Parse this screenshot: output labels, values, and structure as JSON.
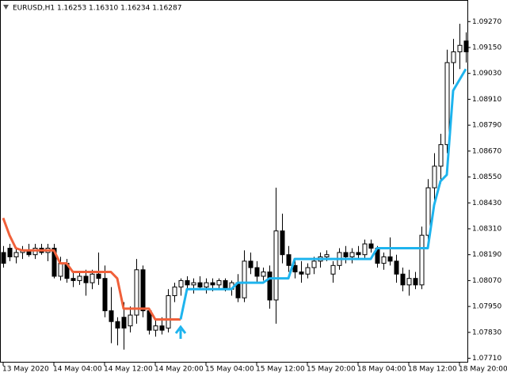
{
  "chart_data": {
    "type": "candlestick",
    "title": "EURUSD,H1  1.16253 1.16310 1.16234 1.16287",
    "categories": [
      "13 May 2020",
      null,
      null,
      null,
      null,
      null,
      null,
      null,
      "14 May 04:00",
      null,
      null,
      null,
      null,
      null,
      null,
      null,
      "14 May 12:00",
      null,
      null,
      null,
      null,
      null,
      null,
      null,
      "14 May 20:00",
      null,
      null,
      null,
      null,
      null,
      null,
      null,
      "15 May 04:00",
      null,
      null,
      null,
      null,
      null,
      null,
      null,
      "15 May 12:00",
      null,
      null,
      null,
      null,
      null,
      null,
      null,
      "15 May 20:00",
      null,
      null,
      null,
      null,
      null,
      null,
      null,
      "18 May 04:00",
      null,
      null,
      null,
      null,
      null,
      null,
      null,
      "18 May 12:00",
      null,
      null,
      null,
      null,
      null,
      null,
      null,
      "18 May 20:00",
      null
    ],
    "open": [
      1.082,
      1.0822,
      1.0818,
      1.082,
      1.0821,
      1.0819,
      1.0822,
      1.082,
      1.0822,
      1.0809,
      1.0815,
      1.0808,
      1.0807,
      1.0809,
      1.0806,
      1.081,
      1.0808,
      1.0793,
      1.0788,
      1.079,
      1.0786,
      1.0791,
      1.0812,
      1.0793,
      1.0784,
      1.0786,
      1.0785,
      1.08,
      1.0804,
      1.0807,
      1.0805,
      1.0806,
      1.0804,
      1.0806,
      1.0805,
      1.0807,
      1.0803,
      1.0806,
      1.0799,
      1.0816,
      1.0813,
      1.0809,
      1.0811,
      1.0798,
      1.083,
      1.0819,
      1.0814,
      1.0811,
      1.081,
      1.0813,
      1.0816,
      1.0818,
      1.081,
      1.0814,
      1.082,
      1.0818,
      1.082,
      1.0819,
      1.0824,
      1.0822,
      1.0815,
      1.0818,
      1.0816,
      1.081,
      1.0805,
      1.0808,
      1.0805,
      1.0828,
      1.085,
      1.086,
      1.087,
      1.0908,
      1.0913,
      1.0918
    ],
    "high": [
      1.0823,
      1.0824,
      1.0822,
      1.0823,
      1.0824,
      1.0824,
      1.0824,
      1.0824,
      1.0824,
      1.0818,
      1.0817,
      1.0811,
      1.0811,
      1.0812,
      1.0812,
      1.082,
      1.0814,
      1.0804,
      1.079,
      1.0797,
      1.0795,
      1.0817,
      1.0814,
      1.0794,
      1.0789,
      1.079,
      1.0803,
      1.0806,
      1.0808,
      1.0809,
      1.0808,
      1.0809,
      1.0808,
      1.0808,
      1.0808,
      1.0808,
      1.0807,
      1.081,
      1.0821,
      1.082,
      1.0816,
      1.0813,
      1.0814,
      1.085,
      1.0838,
      1.0823,
      1.0817,
      1.0816,
      1.0815,
      1.0818,
      1.082,
      1.0821,
      1.0816,
      1.0822,
      1.0823,
      1.0822,
      1.0823,
      1.0826,
      1.0826,
      1.0823,
      1.082,
      1.0827,
      1.0819,
      1.0813,
      1.0812,
      1.0811,
      1.0832,
      1.0854,
      1.0866,
      1.0875,
      1.0914,
      1.0919,
      1.0926,
      1.0922
    ],
    "low": [
      1.0813,
      1.0816,
      1.0815,
      1.0817,
      1.0818,
      1.0817,
      1.0819,
      1.0816,
      1.0808,
      1.0807,
      1.0806,
      1.0804,
      1.0805,
      1.08,
      1.0803,
      1.0805,
      1.079,
      1.0778,
      1.0777,
      1.0775,
      1.0783,
      1.0787,
      1.079,
      1.0782,
      1.0781,
      1.0782,
      1.0783,
      1.0797,
      1.08,
      1.0803,
      1.0801,
      1.0803,
      1.0801,
      1.0802,
      1.0803,
      1.0802,
      1.08,
      1.0797,
      1.0797,
      1.081,
      1.0806,
      1.0807,
      1.0794,
      1.0787,
      1.0815,
      1.0811,
      1.0808,
      1.0806,
      1.0808,
      1.081,
      1.0813,
      1.0816,
      1.0806,
      1.0812,
      1.0815,
      1.0815,
      1.0817,
      1.0817,
      1.082,
      1.0813,
      1.0812,
      1.0814,
      1.0806,
      1.0802,
      1.08,
      1.0803,
      1.0803,
      1.0822,
      1.0844,
      1.0852,
      1.0866,
      1.0898,
      1.0905,
      1.0908
    ],
    "close": [
      1.0815,
      1.0818,
      1.082,
      1.0821,
      1.0819,
      1.0822,
      1.082,
      1.0822,
      1.0809,
      1.0815,
      1.0808,
      1.0807,
      1.0809,
      1.0806,
      1.081,
      1.0808,
      1.0793,
      1.0788,
      1.0785,
      1.0785,
      1.0791,
      1.0812,
      1.0793,
      1.0784,
      1.0786,
      1.0784,
      1.08,
      1.0804,
      1.0807,
      1.0805,
      1.0806,
      1.0804,
      1.0806,
      1.0805,
      1.0807,
      1.0803,
      1.0806,
      1.0799,
      1.0816,
      1.0813,
      1.0809,
      1.0811,
      1.0798,
      1.083,
      1.0819,
      1.0814,
      1.0811,
      1.081,
      1.0813,
      1.0816,
      1.0818,
      1.0819,
      1.0814,
      1.082,
      1.0818,
      1.082,
      1.0819,
      1.0824,
      1.0822,
      1.0815,
      1.0818,
      1.0816,
      1.081,
      1.0805,
      1.0808,
      1.0805,
      1.0828,
      1.085,
      1.086,
      1.087,
      1.0908,
      1.0913,
      1.0916,
      1.0913
    ],
    "up_color": "#ffffff",
    "down_color": "#000000",
    "series": [
      {
        "color": "#f0603a",
        "values": [
          1.0836,
          1.0828,
          1.0822,
          1.0821,
          1.0821,
          1.0821,
          1.0821,
          1.0821,
          1.0821,
          1.0815,
          1.0815,
          1.0811,
          1.0811,
          1.0811,
          1.0811,
          1.0811,
          1.0811,
          1.0811,
          1.0808,
          1.0794,
          1.0794,
          1.0794,
          1.0794,
          1.0794,
          1.0789,
          1.0789,
          1.0789,
          1.0789,
          1.0789,
          null,
          null,
          null,
          null,
          null,
          null,
          null,
          null,
          null,
          null,
          null,
          null,
          null,
          null,
          null,
          null,
          null,
          null,
          null,
          null,
          null,
          null,
          null,
          null,
          null,
          null,
          null,
          null,
          null,
          null,
          null,
          null,
          null,
          null,
          null,
          null,
          null,
          null,
          null,
          null,
          null,
          null,
          null,
          null,
          null
        ]
      },
      {
        "color": "#1eb4ee",
        "values": [
          null,
          null,
          null,
          null,
          null,
          null,
          null,
          null,
          null,
          null,
          null,
          null,
          null,
          null,
          null,
          null,
          null,
          null,
          null,
          null,
          null,
          null,
          null,
          null,
          null,
          null,
          null,
          null,
          1.0789,
          1.0803,
          1.0803,
          1.0803,
          1.0803,
          1.0803,
          1.0803,
          1.0803,
          1.0803,
          1.0806,
          1.0806,
          1.0806,
          1.0806,
          1.0806,
          1.0808,
          1.0808,
          1.0808,
          1.0808,
          1.0817,
          1.0817,
          1.0817,
          1.0817,
          1.0817,
          1.0817,
          1.0817,
          1.0817,
          1.0817,
          1.0817,
          1.0817,
          1.0817,
          1.0817,
          1.0822,
          1.0822,
          1.0822,
          1.0822,
          1.0822,
          1.0822,
          1.0822,
          1.0822,
          1.0822,
          1.0842,
          1.0853,
          1.0856,
          1.0895,
          1.09,
          1.0905
        ]
      }
    ],
    "ylim": [
      1.0769,
      1.0937
    ],
    "yticks": [
      {
        "value": 1.0927,
        "label": "1.09270"
      },
      {
        "value": 1.0915,
        "label": "1.09150"
      },
      {
        "value": 1.0903,
        "label": "1.09030"
      },
      {
        "value": 1.0891,
        "label": "1.08910"
      },
      {
        "value": 1.0879,
        "label": "1.08790"
      },
      {
        "value": 1.0867,
        "label": "1.08670"
      },
      {
        "value": 1.0855,
        "label": "1.08550"
      },
      {
        "value": 1.0843,
        "label": "1.08430"
      },
      {
        "value": 1.0831,
        "label": "1.08310"
      },
      {
        "value": 1.0819,
        "label": "1.08190"
      },
      {
        "value": 1.0807,
        "label": "1.08070"
      },
      {
        "value": 1.0795,
        "label": "1.07950"
      },
      {
        "value": 1.0783,
        "label": "1.07830"
      },
      {
        "value": 1.0771,
        "label": "1.07710"
      }
    ]
  }
}
